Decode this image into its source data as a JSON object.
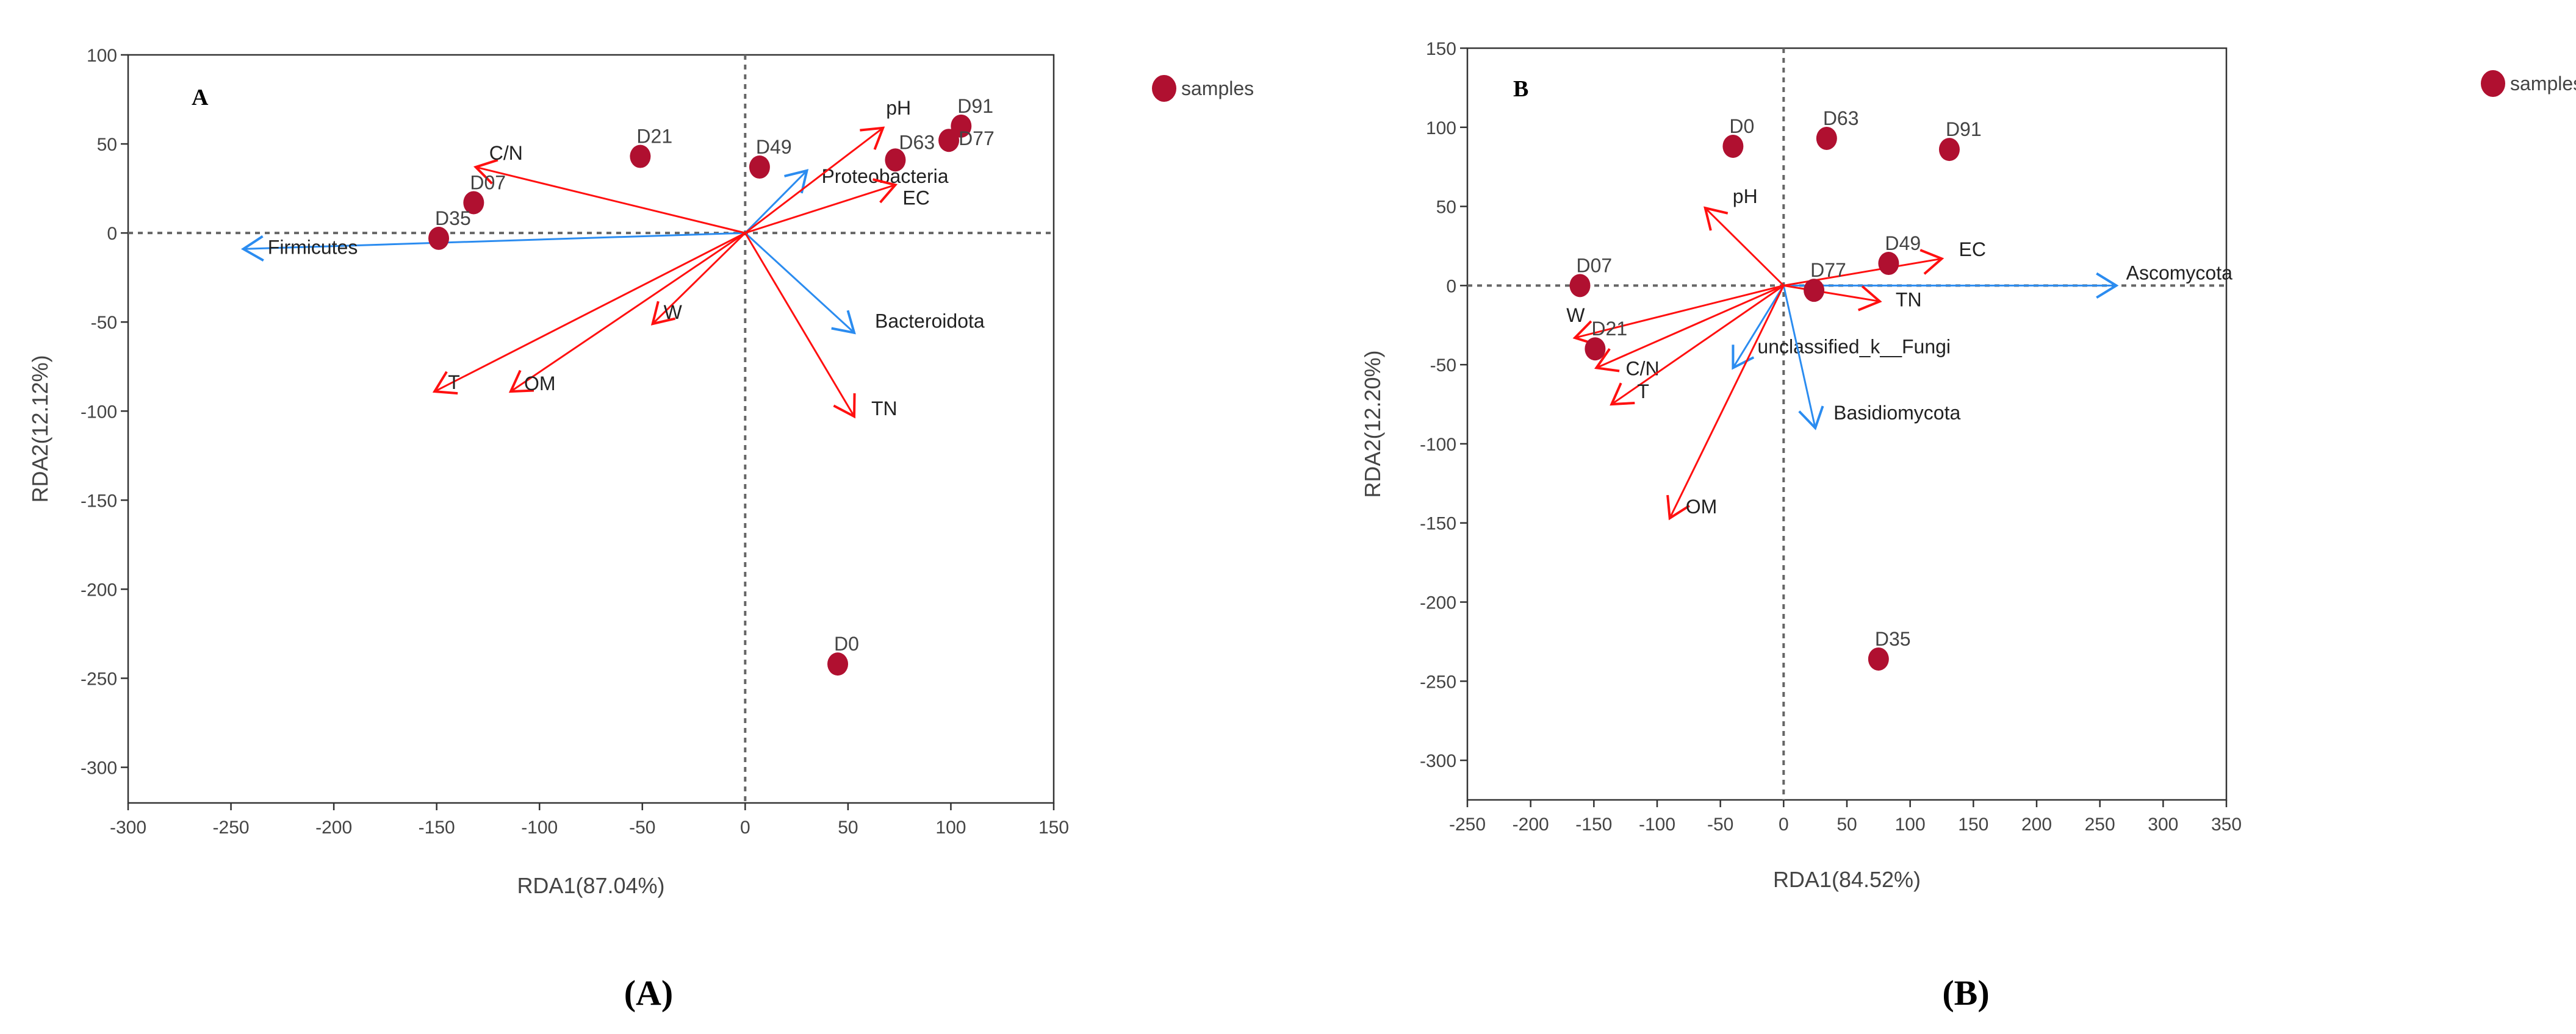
{
  "colors": {
    "sample": "#b01030",
    "env": "#ff1010",
    "species": "#2b8cf0",
    "axis": "#333333",
    "zero": "#666666"
  },
  "chart_data": [
    {
      "type": "scatter",
      "panel_letter": "A",
      "caption": "(A)",
      "xlabel": "RDA1(87.04%)",
      "ylabel": "RDA2(12.12%)",
      "xlim": [
        -300,
        150
      ],
      "ylim": [
        -320,
        100
      ],
      "xticks": [
        -300,
        -250,
        -200,
        -150,
        -100,
        -50,
        0,
        50,
        100,
        150
      ],
      "yticks": [
        100,
        50,
        0,
        -50,
        -100,
        -150,
        -200,
        -250,
        -300
      ],
      "legend": {
        "label": "samples",
        "position": "top-right-outside"
      },
      "samples": [
        {
          "name": "D91",
          "x": 105,
          "y": 60
        },
        {
          "name": "D77",
          "x": 99,
          "y": 52
        },
        {
          "name": "D63",
          "x": 73,
          "y": 41
        },
        {
          "name": "D49",
          "x": 7,
          "y": 37
        },
        {
          "name": "D21",
          "x": -51,
          "y": 43
        },
        {
          "name": "D07",
          "x": -132,
          "y": 17
        },
        {
          "name": "D35",
          "x": -149,
          "y": -3
        },
        {
          "name": "D0",
          "x": 45,
          "y": -242
        }
      ],
      "env_arrows": [
        {
          "name": "pH",
          "x": 67,
          "y": 59
        },
        {
          "name": "EC",
          "x": 73,
          "y": 27
        },
        {
          "name": "C/N",
          "x": -131,
          "y": 37
        },
        {
          "name": "W",
          "x": -45,
          "y": -51
        },
        {
          "name": "T",
          "x": -151,
          "y": -89
        },
        {
          "name": "OM",
          "x": -114,
          "y": -89
        },
        {
          "name": "TN",
          "x": 53,
          "y": -103
        }
      ],
      "species_arrows": [
        {
          "name": "Proteobacteria",
          "x": 30,
          "y": 35
        },
        {
          "name": "Firmicutes",
          "x": -244,
          "y": -9
        },
        {
          "name": "Bacteroidota",
          "x": 53,
          "y": -56
        }
      ]
    },
    {
      "type": "scatter",
      "panel_letter": "B",
      "caption": "(B)",
      "xlabel": "RDA1(84.52%)",
      "ylabel": "RDA2(12.20%)",
      "xlim": [
        -250,
        350
      ],
      "ylim": [
        -325,
        150
      ],
      "xticks": [
        -250,
        -200,
        -150,
        -100,
        -50,
        0,
        50,
        100,
        150,
        200,
        250,
        300,
        350
      ],
      "yticks": [
        150,
        100,
        50,
        0,
        -50,
        -100,
        -150,
        -200,
        -250,
        -300
      ],
      "legend": {
        "label": "samples",
        "position": "top-right-outside"
      },
      "samples": [
        {
          "name": "D0",
          "x": -40,
          "y": 88
        },
        {
          "name": "D63",
          "x": 34,
          "y": 93
        },
        {
          "name": "D91",
          "x": 131,
          "y": 86
        },
        {
          "name": "D49",
          "x": 83,
          "y": 14
        },
        {
          "name": "D77",
          "x": 24,
          "y": -3
        },
        {
          "name": "D07",
          "x": -161,
          "y": 0
        },
        {
          "name": "D21",
          "x": -149,
          "y": -40
        },
        {
          "name": "D35",
          "x": 75,
          "y": -236
        }
      ],
      "env_arrows": [
        {
          "name": "pH",
          "x": -62,
          "y": 49
        },
        {
          "name": "EC",
          "x": 125,
          "y": 17
        },
        {
          "name": "TN",
          "x": 76,
          "y": -10
        },
        {
          "name": "W",
          "x": -165,
          "y": -33
        },
        {
          "name": "C/N",
          "x": -148,
          "y": -52
        },
        {
          "name": "T",
          "x": -136,
          "y": -75
        },
        {
          "name": "OM",
          "x": -90,
          "y": -147
        }
      ],
      "species_arrows": [
        {
          "name": "Ascomycota",
          "x": 263,
          "y": 0
        },
        {
          "name": "unclassified_k__Fungi",
          "x": -40,
          "y": -52
        },
        {
          "name": "Basidiomycota",
          "x": 25,
          "y": -90
        }
      ]
    }
  ]
}
